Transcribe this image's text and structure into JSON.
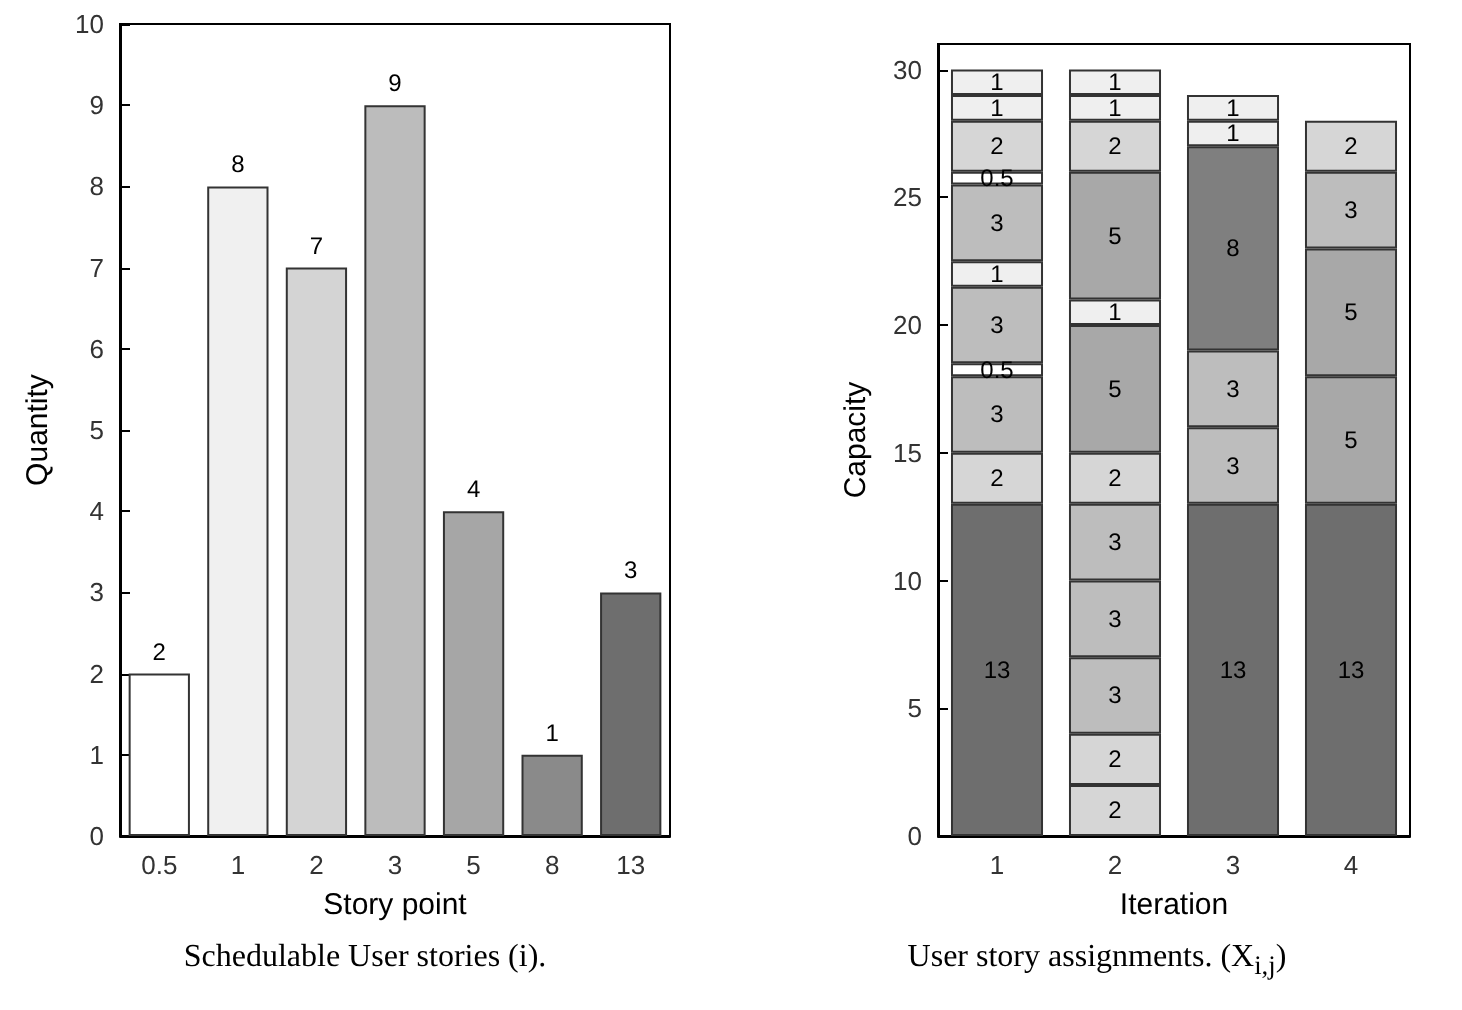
{
  "chart_data": [
    {
      "type": "bar",
      "xlabel": "Story point",
      "ylabel": "Quantity",
      "categories": [
        "0.5",
        "1",
        "2",
        "3",
        "5",
        "8",
        "13"
      ],
      "values": [
        2,
        8,
        7,
        9,
        4,
        1,
        3
      ],
      "colors": [
        "#ffffff",
        "#f0f0f0",
        "#d4d4d4",
        "#bcbcbc",
        "#a6a6a6",
        "#8a8a8a",
        "#6e6e6e"
      ],
      "ylim": [
        0,
        10
      ],
      "yticks": [
        0,
        1,
        2,
        3,
        4,
        5,
        6,
        7,
        8,
        9,
        10
      ],
      "data_labels": true,
      "grid": false,
      "annotations": [
        "Schedulable User stories (i)."
      ]
    },
    {
      "type": "bar",
      "xlabel": "Iteration",
      "ylabel": "Capacity",
      "categories": [
        "1",
        "2",
        "3",
        "4"
      ],
      "stacked": true,
      "ylim": [
        0,
        31
      ],
      "yticks": [
        0,
        5,
        10,
        15,
        20,
        25,
        30
      ],
      "data_labels": true,
      "grid": false,
      "annotations": [
        "User story assignments. (X$_{i,j}$)"
      ],
      "series": [
        {
          "values": [
            13,
            2,
            13,
            13
          ],
          "colors": [
            "#6e6e6e",
            "#d6d6d6",
            "#6e6e6e",
            "#6e6e6e"
          ]
        },
        {
          "values": [
            2,
            2,
            3,
            5
          ],
          "colors": [
            "#d6d6d6",
            "#d6d6d6",
            "#bdbdbd",
            "#a8a8a8"
          ]
        },
        {
          "values": [
            3,
            3,
            3,
            5
          ],
          "colors": [
            "#bdbdbd",
            "#bdbdbd",
            "#bdbdbd",
            "#a8a8a8"
          ]
        },
        {
          "values": [
            0.5,
            3,
            8,
            3
          ],
          "colors": [
            "#ffffff",
            "#bdbdbd",
            "#7f7f7f",
            "#bdbdbd"
          ]
        },
        {
          "values": [
            3,
            3,
            1,
            2
          ],
          "colors": [
            "#bdbdbd",
            "#bdbdbd",
            "#efefef",
            "#d6d6d6"
          ]
        },
        {
          "values": [
            1,
            2,
            1,
            null
          ],
          "colors": [
            "#efefef",
            "#d6d6d6",
            "#efefef",
            null
          ]
        },
        {
          "values": [
            3,
            5,
            null,
            null
          ],
          "colors": [
            "#bdbdbd",
            "#a8a8a8",
            null,
            null
          ]
        },
        {
          "values": [
            0.5,
            1,
            null,
            null
          ],
          "colors": [
            "#ffffff",
            "#efefef",
            null,
            null
          ]
        },
        {
          "values": [
            2,
            5,
            null,
            null
          ],
          "colors": [
            "#d6d6d6",
            "#a8a8a8",
            null,
            null
          ]
        },
        {
          "values": [
            1,
            2,
            null,
            null
          ],
          "colors": [
            "#efefef",
            "#d6d6d6",
            null,
            null
          ]
        },
        {
          "values": [
            1,
            1,
            null,
            null
          ],
          "colors": [
            "#efefef",
            "#efefef",
            null,
            null
          ]
        },
        {
          "values": [
            null,
            1,
            null,
            null
          ],
          "colors": [
            null,
            "#efefef",
            null,
            null
          ]
        }
      ]
    }
  ]
}
